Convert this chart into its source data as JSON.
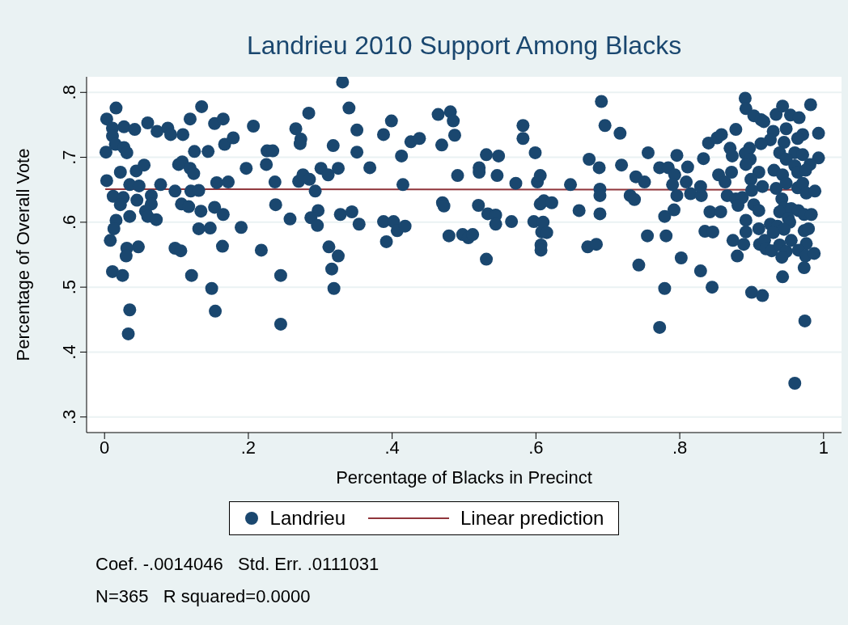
{
  "chart_data": {
    "type": "scatter",
    "title": "Landrieu 2010 Support Among Blacks",
    "xlabel": "Percentage of Blacks in Precinct",
    "ylabel": "Percentage of Overall Vote",
    "xlim": [
      -0.025,
      1.025
    ],
    "ylim": [
      0.276,
      0.824
    ],
    "xticks": [
      0,
      {
        "value": 0.2,
        "label": ".2"
      },
      {
        "value": 0.4,
        "label": ".4"
      },
      {
        "value": 0.6,
        "label": ".6"
      },
      {
        "value": 0.8,
        "label": ".8"
      },
      1
    ],
    "yticks": [
      {
        "value": 0.3,
        "label": ".3"
      },
      {
        "value": 0.4,
        "label": ".4"
      },
      {
        "value": 0.5,
        "label": ".5"
      },
      {
        "value": 0.6,
        "label": ".6"
      },
      {
        "value": 0.7,
        "label": ".7"
      },
      {
        "value": 0.8,
        "label": ".8"
      }
    ],
    "grid": "y",
    "legend": "bottom",
    "marker": "circle",
    "series": [
      {
        "name": "Landrieu",
        "color": "#1a476f",
        "x": [
          0.003,
          0.016,
          0.011,
          0.011,
          0.015,
          0.027,
          0.042,
          0.06,
          0.002,
          0.027,
          0.031,
          0.003,
          0.022,
          0.044,
          0.055,
          0.035,
          0.048,
          0.012,
          0.026,
          0.022,
          0.045,
          0.065,
          0.065,
          0.057,
          0.06,
          0.072,
          0.035,
          0.016,
          0.013,
          0.008,
          0.031,
          0.03,
          0.047,
          0.011,
          0.025,
          0.035,
          0.033,
          0.073,
          0.088,
          0.092,
          0.109,
          0.119,
          0.135,
          0.125,
          0.144,
          0.103,
          0.108,
          0.119,
          0.124,
          0.078,
          0.098,
          0.12,
          0.131,
          0.107,
          0.117,
          0.134,
          0.153,
          0.165,
          0.167,
          0.179,
          0.156,
          0.172,
          0.153,
          0.165,
          0.131,
          0.147,
          0.098,
          0.106,
          0.164,
          0.121,
          0.149,
          0.154,
          0.19,
          0.207,
          0.197,
          0.226,
          0.234,
          0.225,
          0.237,
          0.238,
          0.218,
          0.245,
          0.245,
          0.258,
          0.266,
          0.273,
          0.272,
          0.284,
          0.27,
          0.276,
          0.285,
          0.293,
          0.297,
          0.287,
          0.296,
          0.301,
          0.311,
          0.325,
          0.318,
          0.328,
          0.312,
          0.325,
          0.316,
          0.319,
          0.331,
          0.34,
          0.351,
          0.351,
          0.369,
          0.388,
          0.399,
          0.413,
          0.426,
          0.438,
          0.415,
          0.344,
          0.354,
          0.388,
          0.402,
          0.407,
          0.418,
          0.392,
          0.464,
          0.481,
          0.485,
          0.487,
          0.469,
          0.47,
          0.472,
          0.479,
          0.498,
          0.506,
          0.512,
          0.491,
          0.521,
          0.521,
          0.531,
          0.548,
          0.546,
          0.52,
          0.533,
          0.544,
          0.544,
          0.566,
          0.531,
          0.582,
          0.582,
          0.599,
          0.572,
          0.602,
          0.606,
          0.597,
          0.61,
          0.611,
          0.606,
          0.622,
          0.608,
          0.615,
          0.607,
          0.607,
          0.672,
          0.684,
          0.648,
          0.66,
          0.674,
          0.688,
          0.689,
          0.689,
          0.689,
          0.691,
          0.696,
          0.717,
          0.719,
          0.739,
          0.751,
          0.731,
          0.737,
          0.756,
          0.772,
          0.784,
          0.793,
          0.796,
          0.811,
          0.809,
          0.79,
          0.796,
          0.815,
          0.83,
          0.829,
          0.833,
          0.779,
          0.792,
          0.755,
          0.781,
          0.743,
          0.802,
          0.829,
          0.779,
          0.845,
          0.772,
          0.835,
          0.846,
          0.842,
          0.857,
          0.84,
          0.852,
          0.858,
          0.878,
          0.87,
          0.873,
          0.891,
          0.892,
          0.903,
          0.913,
          0.917,
          0.934,
          0.943,
          0.954,
          0.966,
          0.982,
          0.993,
          0.993,
          0.948,
          0.93,
          0.926,
          0.913,
          0.945,
          0.971,
          0.964,
          0.96,
          0.971,
          0.939,
          0.948,
          0.897,
          0.891,
          0.898,
          0.892,
          0.96,
          0.981,
          0.931,
          0.943,
          0.964,
          0.975,
          0.91,
          0.872,
          0.854,
          0.863,
          0.899,
          0.915,
          0.934,
          0.948,
          0.964,
          0.971,
          0.9,
          0.866,
          0.878,
          0.887,
          0.881,
          0.903,
          0.91,
          0.942,
          0.945,
          0.939,
          0.955,
          0.965,
          0.973,
          0.983,
          0.951,
          0.953,
          0.892,
          0.91,
          0.926,
          0.936,
          0.945,
          0.93,
          0.892,
          0.874,
          0.889,
          0.911,
          0.918,
          0.92,
          0.928,
          0.939,
          0.948,
          0.955,
          0.973,
          0.979,
          0.976,
          0.965,
          0.975,
          0.987,
          0.942,
          0.88,
          0.973,
          0.943,
          0.9,
          0.915,
          0.974,
          0.96,
          0.976,
          0.988
        ],
        "values": [
          0.759,
          0.776,
          0.745,
          0.733,
          0.72,
          0.747,
          0.743,
          0.753,
          0.708,
          0.715,
          0.707,
          0.664,
          0.677,
          0.679,
          0.688,
          0.658,
          0.656,
          0.64,
          0.638,
          0.627,
          0.634,
          0.641,
          0.628,
          0.617,
          0.609,
          0.604,
          0.609,
          0.603,
          0.59,
          0.572,
          0.56,
          0.548,
          0.562,
          0.524,
          0.518,
          0.465,
          0.428,
          0.74,
          0.745,
          0.735,
          0.735,
          0.759,
          0.778,
          0.709,
          0.709,
          0.689,
          0.693,
          0.683,
          0.675,
          0.658,
          0.648,
          0.648,
          0.649,
          0.628,
          0.624,
          0.617,
          0.752,
          0.759,
          0.72,
          0.73,
          0.661,
          0.662,
          0.623,
          0.612,
          0.59,
          0.591,
          0.56,
          0.556,
          0.563,
          0.518,
          0.498,
          0.463,
          0.592,
          0.748,
          0.683,
          0.71,
          0.71,
          0.689,
          0.662,
          0.627,
          0.557,
          0.518,
          0.443,
          0.605,
          0.744,
          0.728,
          0.721,
          0.768,
          0.663,
          0.673,
          0.666,
          0.648,
          0.618,
          0.607,
          0.595,
          0.683,
          0.673,
          0.683,
          0.718,
          0.612,
          0.562,
          0.548,
          0.528,
          0.498,
          0.816,
          0.776,
          0.742,
          0.708,
          0.684,
          0.735,
          0.756,
          0.702,
          0.724,
          0.729,
          0.658,
          0.616,
          0.597,
          0.601,
          0.601,
          0.587,
          0.594,
          0.57,
          0.766,
          0.77,
          0.756,
          0.734,
          0.719,
          0.63,
          0.625,
          0.579,
          0.581,
          0.576,
          0.581,
          0.672,
          0.684,
          0.677,
          0.704,
          0.702,
          0.672,
          0.626,
          0.613,
          0.611,
          0.597,
          0.601,
          0.543,
          0.749,
          0.729,
          0.707,
          0.66,
          0.662,
          0.672,
          0.601,
          0.6,
          0.633,
          0.628,
          0.63,
          0.585,
          0.584,
          0.565,
          0.557,
          0.562,
          0.566,
          0.658,
          0.618,
          0.697,
          0.684,
          0.651,
          0.641,
          0.613,
          0.786,
          0.749,
          0.737,
          0.688,
          0.67,
          0.662,
          0.641,
          0.635,
          0.707,
          0.684,
          0.684,
          0.673,
          0.703,
          0.685,
          0.662,
          0.658,
          0.641,
          0.644,
          0.641,
          0.655,
          0.698,
          0.609,
          0.619,
          0.579,
          0.579,
          0.534,
          0.545,
          0.525,
          0.498,
          0.5,
          0.438,
          0.586,
          0.585,
          0.616,
          0.616,
          0.722,
          0.73,
          0.735,
          0.743,
          0.714,
          0.702,
          0.791,
          0.775,
          0.764,
          0.758,
          0.755,
          0.766,
          0.779,
          0.765,
          0.761,
          0.781,
          0.737,
          0.699,
          0.744,
          0.74,
          0.727,
          0.721,
          0.723,
          0.735,
          0.729,
          0.707,
          0.704,
          0.707,
          0.697,
          0.714,
          0.706,
          0.697,
          0.689,
          0.687,
          0.689,
          0.68,
          0.673,
          0.677,
          0.68,
          0.677,
          0.677,
          0.673,
          0.662,
          0.666,
          0.655,
          0.652,
          0.66,
          0.653,
          0.66,
          0.649,
          0.641,
          0.636,
          0.638,
          0.626,
          0.627,
          0.618,
          0.636,
          0.622,
          0.616,
          0.621,
          0.618,
          0.612,
          0.612,
          0.606,
          0.6,
          0.603,
          0.59,
          0.597,
          0.594,
          0.589,
          0.584,
          0.585,
          0.572,
          0.566,
          0.566,
          0.572,
          0.559,
          0.556,
          0.565,
          0.555,
          0.572,
          0.587,
          0.59,
          0.567,
          0.557,
          0.548,
          0.552,
          0.546,
          0.548,
          0.53,
          0.516,
          0.492,
          0.487,
          0.448,
          0.352,
          0.645,
          0.648
        ]
      },
      {
        "name": "Linear prediction",
        "type": "line",
        "marker": "none",
        "color": "#90353b",
        "x": [
          0.001,
          0.993
        ],
        "values": [
          0.651,
          0.65
        ]
      }
    ],
    "annotations": [
      "Coef. -.0014046   Std. Err. .0111031",
      "N=365   R squared=0.0000"
    ]
  }
}
